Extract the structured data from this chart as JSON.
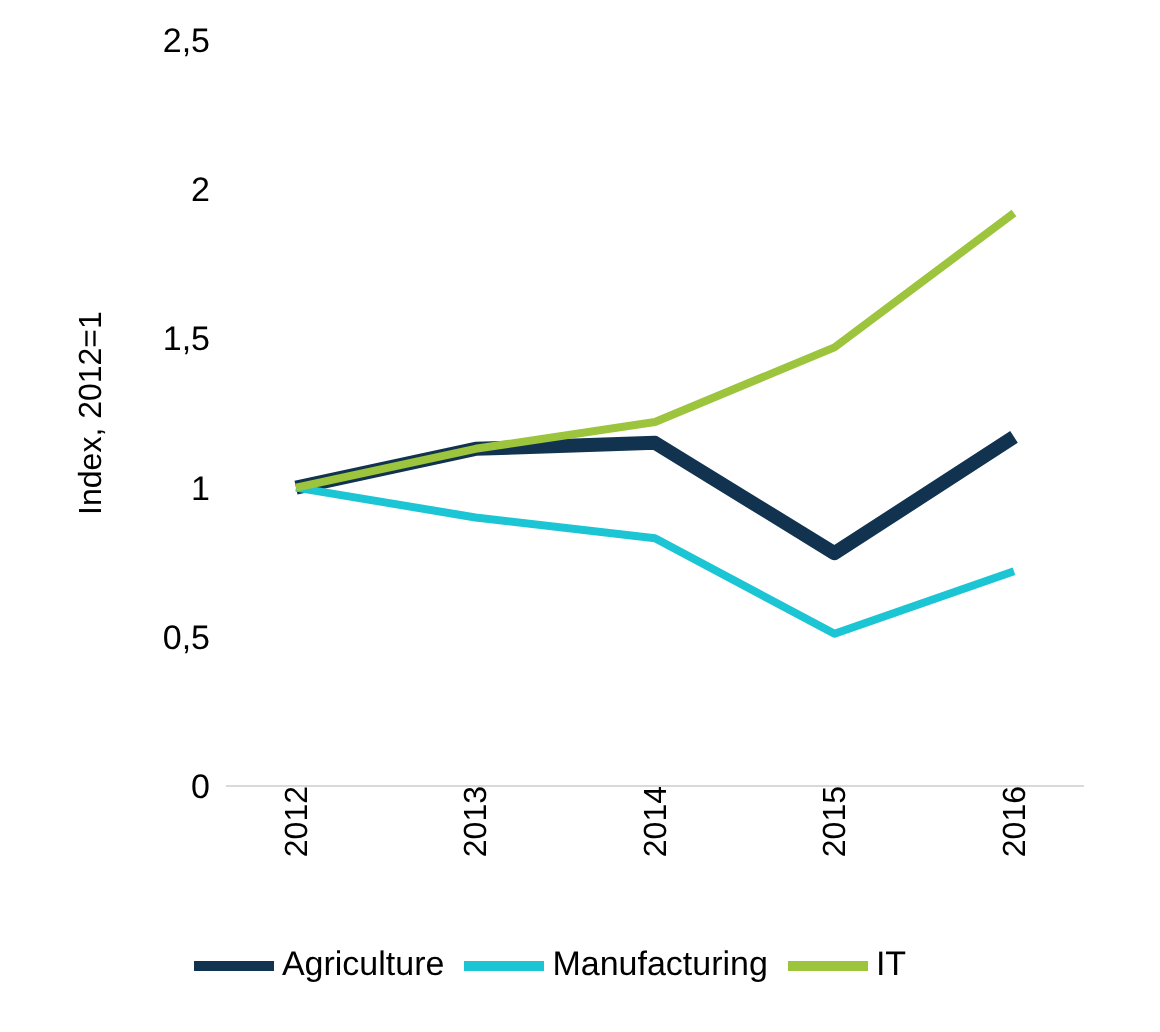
{
  "chart_data": {
    "type": "line",
    "ylabel": "Index, 2012=1",
    "categories": [
      "2012",
      "2013",
      "2014",
      "2015",
      "2016"
    ],
    "series": [
      {
        "name": "Agriculture",
        "color": "#12334f",
        "values": [
          1,
          1.13,
          1.15,
          0.78,
          1.17
        ]
      },
      {
        "name": "Manufacturing",
        "color": "#1cc5d4",
        "values": [
          1,
          0.9,
          0.83,
          0.51,
          0.72
        ]
      },
      {
        "name": "IT",
        "color": "#9cc43c",
        "values": [
          1,
          1.13,
          1.22,
          1.47,
          1.92
        ]
      }
    ],
    "ylim": [
      0,
      2.5
    ],
    "yticks": [
      0,
      {
        "value": 0.5,
        "label": "0,5"
      },
      1,
      {
        "value": 1.5,
        "label": "1,5"
      },
      2,
      {
        "value": 2.5,
        "label": "2,5"
      }
    ],
    "grid": false,
    "legend": "bottom",
    "marker": "none",
    "line_style": "solid"
  }
}
